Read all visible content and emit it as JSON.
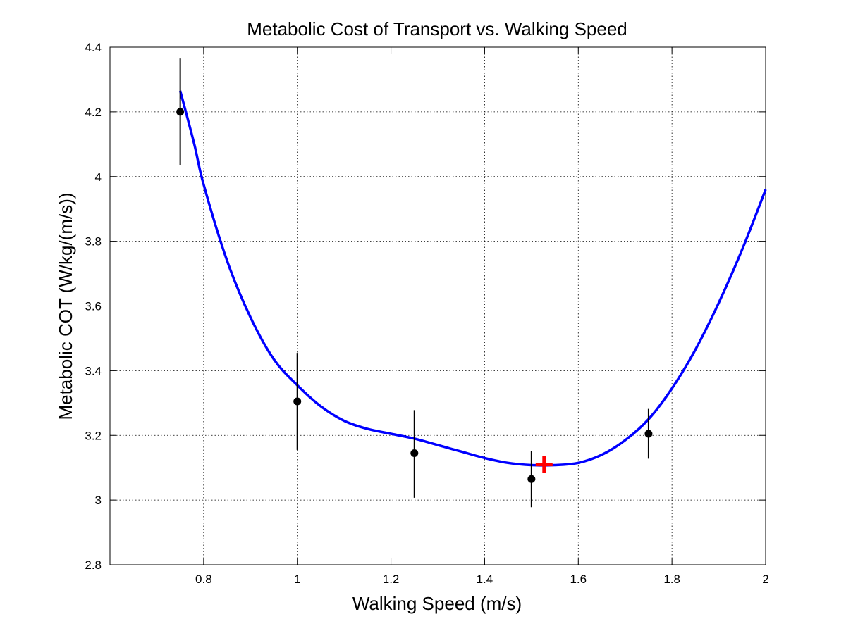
{
  "chart_data": {
    "type": "line",
    "title": "Metabolic Cost of Transport vs. Walking Speed",
    "xlabel": "Walking Speed (m/s)",
    "ylabel": "Metabolic COT (W/kg/(m/s))",
    "xlim": [
      0.6,
      2.0
    ],
    "ylim": [
      2.8,
      4.4
    ],
    "x_ticks": [
      0.8,
      1.0,
      1.2,
      1.4,
      1.6,
      1.8,
      2.0
    ],
    "x_tick_labels": [
      "0.8",
      "1",
      "1.2",
      "1.4",
      "1.6",
      "1.8",
      "2"
    ],
    "y_ticks": [
      2.8,
      3.0,
      3.2,
      3.4,
      3.6,
      3.8,
      4.0,
      4.2,
      4.4
    ],
    "y_tick_labels": [
      "2.8",
      "3",
      "3.2",
      "3.4",
      "3.6",
      "3.8",
      "4",
      "4.2",
      "4.4"
    ],
    "grid": true,
    "series": [
      {
        "kind": "errorbar",
        "color": "#000000",
        "x": [
          0.75,
          1.0,
          1.25,
          1.5,
          1.75
        ],
        "y": [
          4.2,
          3.305,
          3.145,
          3.065,
          3.205
        ],
        "err_low": [
          4.035,
          3.155,
          3.007,
          2.978,
          3.128
        ],
        "err_high": [
          4.365,
          3.455,
          3.278,
          3.152,
          3.282
        ]
      },
      {
        "kind": "fit-line",
        "color": "#0000ff",
        "x": [
          0.75,
          0.78,
          0.8,
          0.85,
          0.9,
          0.95,
          1.0,
          1.05,
          1.1,
          1.15,
          1.2,
          1.25,
          1.3,
          1.35,
          1.4,
          1.45,
          1.5,
          1.55,
          1.6,
          1.65,
          1.7,
          1.75,
          1.8,
          1.85,
          1.9,
          1.95,
          2.0
        ],
        "y": [
          4.265,
          4.1,
          3.975,
          3.74,
          3.565,
          3.435,
          3.355,
          3.29,
          3.245,
          3.22,
          3.205,
          3.19,
          3.17,
          3.15,
          3.13,
          3.115,
          3.108,
          3.108,
          3.115,
          3.14,
          3.185,
          3.25,
          3.345,
          3.465,
          3.61,
          3.775,
          3.96
        ]
      },
      {
        "kind": "minimum-marker",
        "color": "#ff0000",
        "x": [
          1.527
        ],
        "y": [
          3.11
        ]
      }
    ]
  }
}
